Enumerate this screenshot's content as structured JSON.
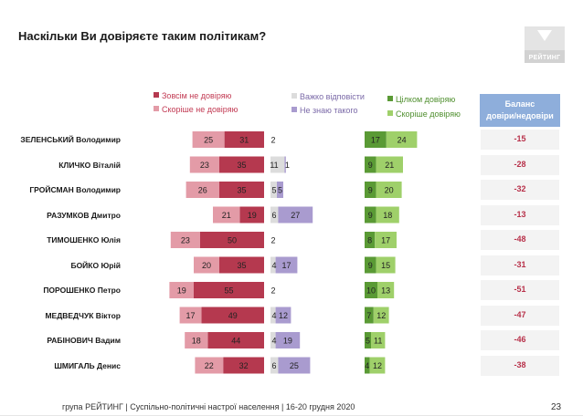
{
  "title": "Наскільки Ви довіряєте таким політикам?",
  "logo_text": "РЕЙТИНГ",
  "legend": {
    "not_at_all": "Зовсім не довіряю",
    "rather_not": "Скоріше не довіряю",
    "hard_to_say": "Важко відповісти",
    "dont_know": "Не знаю такого",
    "fully_trust": "Цілком довіряю",
    "rather_trust": "Скоріше довіряю"
  },
  "balance_header": [
    "Баланс",
    "довіри/недовіри"
  ],
  "colors": {
    "not_at_all": "#b5394f",
    "rather_not": "#e39ba7",
    "hard_to_say": "#dcdcdc",
    "dont_know": "#a99bcf",
    "fully_trust": "#5a9a35",
    "rather_trust": "#9fd06a",
    "balance_head": "#8eaedb",
    "balance_text": "#b8314a"
  },
  "chart_data": {
    "type": "bar",
    "stacked": "diverging",
    "categories": [
      "ЗЕЛЕНСЬКИЙ Володимир",
      "КЛИЧКО Віталій",
      "ГРОЙСМАН Володимир",
      "РАЗУМКОВ Дмитро",
      "ТИМОШЕНКО Юлія",
      "БОЙКО Юрій",
      "ПОРОШЕНКО Петро",
      "МЕДВЕДЧУК Віктор",
      "РАБІНОВИЧ Вадим",
      "ШМИГАЛЬ Денис"
    ],
    "series": [
      {
        "name": "Зовсім не довіряю",
        "values": [
          31,
          35,
          35,
          19,
          50,
          35,
          55,
          49,
          44,
          32
        ]
      },
      {
        "name": "Скоріше не довіряю",
        "values": [
          25,
          23,
          26,
          21,
          23,
          20,
          19,
          17,
          18,
          22
        ]
      },
      {
        "name": "Важко відповісти",
        "values": [
          2,
          11,
          5,
          6,
          2,
          4,
          2,
          4,
          4,
          6
        ]
      },
      {
        "name": "Не знаю такого",
        "values": [
          0,
          1,
          5,
          27,
          0,
          17,
          0,
          12,
          19,
          25
        ]
      },
      {
        "name": "Цілком довіряю",
        "values": [
          17,
          9,
          9,
          9,
          8,
          9,
          10,
          7,
          5,
          4
        ]
      },
      {
        "name": "Скоріше довіряю",
        "values": [
          24,
          21,
          20,
          18,
          17,
          15,
          13,
          12,
          11,
          12
        ]
      }
    ],
    "balance": [
      "-15",
      "-28",
      "-32",
      "-13",
      "-48",
      "-31",
      "-51",
      "-47",
      "-46",
      "-38"
    ]
  },
  "footer": "група РЕЙТИНГ | Суспільно-політичні настрої населення | 16-20 грудня 2020",
  "page_number": "23"
}
